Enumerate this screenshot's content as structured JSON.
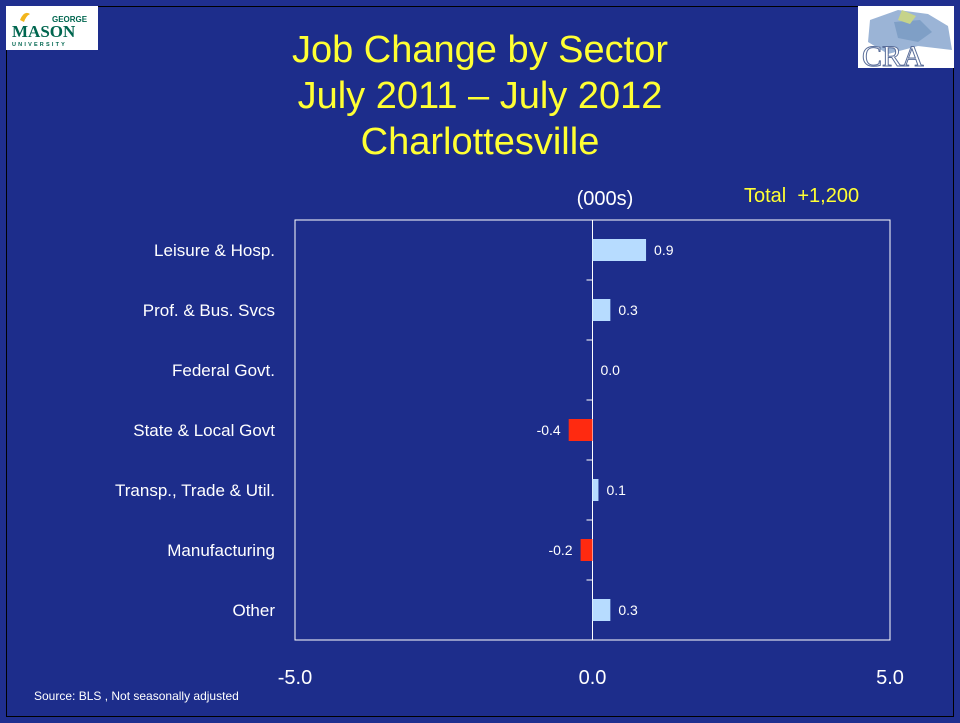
{
  "slide": {
    "title_lines": [
      "Job Change by Sector",
      "July 2011 – July 2012",
      "Charlottesville"
    ],
    "unit_label": "(000s)",
    "total_label": "Total  +1,200",
    "source": "Source: BLS , Not seasonally adjusted",
    "logo_left_text": "MASON",
    "logo_left_top": "GEORGE",
    "logo_left_bottom": "UNIVERSITY",
    "logo_right_text": "CRA"
  },
  "colors": {
    "background": "#1f2f8f",
    "title": "#ffff33",
    "positive": "#b7dcff",
    "negative": "#ff2a10",
    "axis": "#ffffff"
  },
  "chart_data": {
    "type": "bar",
    "orientation": "horizontal",
    "categories": [
      "Leisure & Hosp.",
      "Prof. & Bus. Svcs",
      "Federal Govt.",
      "State & Local Govt",
      "Transp., Trade & Util.",
      "Manufacturing",
      "Other"
    ],
    "values": [
      0.9,
      0.3,
      0.0,
      -0.4,
      0.1,
      -0.2,
      0.3
    ],
    "value_labels": [
      "0.9",
      "0.3",
      "0.0",
      "-0.4",
      "0.1",
      "-0.2",
      "0.3"
    ],
    "xlim": [
      -5.0,
      5.0
    ],
    "xticks": [
      "-5.0",
      "0.0",
      "5.0"
    ],
    "ylabel": "",
    "xlabel": ""
  }
}
